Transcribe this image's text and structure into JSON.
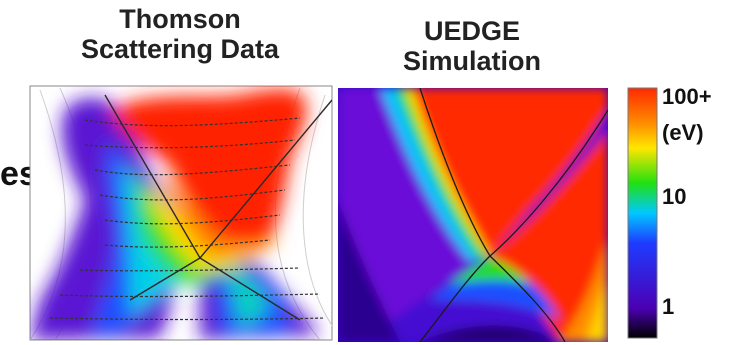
{
  "chart_data": [
    {
      "type": "heatmap",
      "title": [
        "Thomson",
        "Scattering Data"
      ]
    },
    {
      "type": "heatmap",
      "title": [
        "UEDGE",
        "Simulation"
      ]
    }
  ],
  "colorbar": {
    "scale": "log",
    "ticks": [
      {
        "value": 100,
        "label": "100+"
      },
      {
        "value": 10,
        "label": "10"
      },
      {
        "value": 1,
        "label": "1"
      }
    ],
    "unit": "(eV)",
    "colors": [
      "#000000",
      "#4b00b4",
      "#1e3cff",
      "#00c8ff",
      "#22e010",
      "#ffe600",
      "#ff8c00",
      "#ff2a00"
    ]
  },
  "left_fragment": "es"
}
